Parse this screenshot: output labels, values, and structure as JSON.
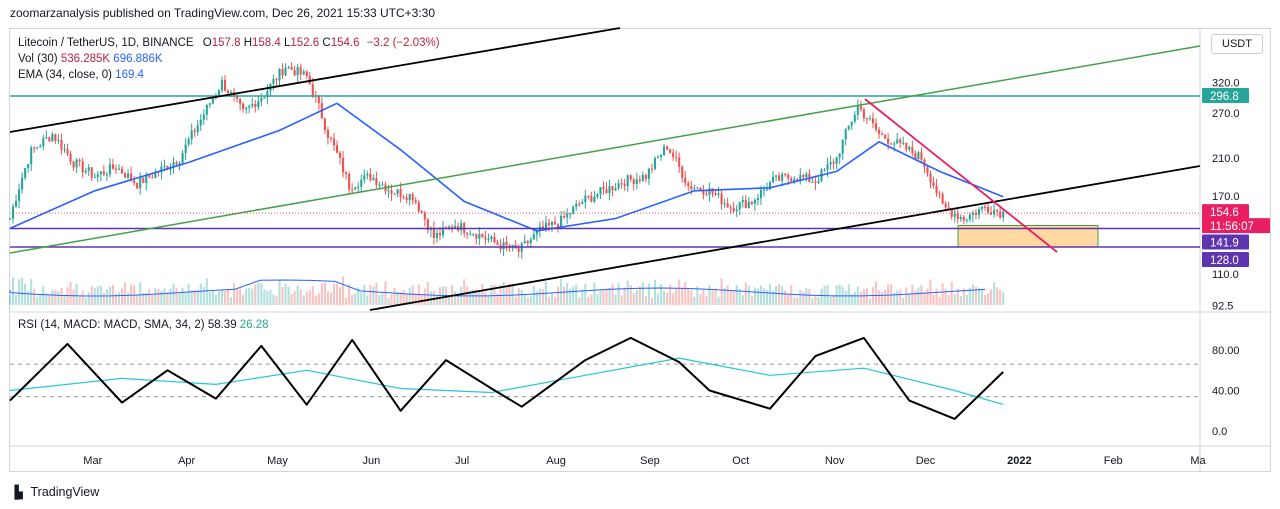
{
  "header": {
    "published": "zoomarzanalysis published on TradingView.com, Dec 26, 2021 15:33 UTC+3:30"
  },
  "legend": {
    "symbol": "Litecoin / TetherUS, 1D, BINANCE",
    "o_label": "O",
    "o": "157.8",
    "h_label": "H",
    "h": "158.4",
    "l_label": "L",
    "l": "152.6",
    "c_label": "C",
    "c": "154.6",
    "chg": "−3.2 (−2.03%)",
    "vol_label": "Vol (30)",
    "vol1": "536.285K",
    "vol2": "696.886K",
    "ema_label": "EMA (34, close, 0)",
    "ema": "169.4",
    "rsi_label": "RSI (14, MACD: MACD, SMA, 34, 2)",
    "rsi1": "58.39",
    "rsi2": "26.28"
  },
  "unit_button": "USDT",
  "price_scale": [
    "320.0",
    "270.0",
    "210.0",
    "170.0",
    "110.0",
    "92.5"
  ],
  "price_scale_top": "4",
  "badges": [
    {
      "id": "resistance",
      "text": "296.8",
      "color": "#26a69a"
    },
    {
      "id": "last",
      "text": "154.6",
      "color": "#e91e63"
    },
    {
      "id": "countdown",
      "text": "11:56:07",
      "color": "#e91e63"
    },
    {
      "id": "s1",
      "text": "141.9",
      "color": "#5e35b1"
    },
    {
      "id": "s2",
      "text": "128.0",
      "color": "#5e35b1"
    }
  ],
  "rsi_scale": [
    "80.00",
    "40.00",
    "0.0"
  ],
  "time_axis": [
    "Mar",
    "Apr",
    "May",
    "Jun",
    "Jul",
    "Aug",
    "Sep",
    "Oct",
    "Nov",
    "Dec",
    "2022",
    "Feb",
    "Ma"
  ],
  "footer": {
    "brand": "TradingView"
  },
  "colors": {
    "up": "#26a69a",
    "down": "#ef5350",
    "ema": "#2962ff",
    "channel": "#000000",
    "green_line": "#43a047",
    "resistance": "#26a69a",
    "downtrend": "#e91e63",
    "support": "#5e35b1",
    "zone": "#ffcc80",
    "rsi": "#000000",
    "rsi_signal": "#26c6da"
  },
  "chart_data": [
    {
      "type": "line",
      "title": "Litecoin / TetherUS, 1D, BINANCE",
      "ylabel": "USDT",
      "x_range": [
        "2021-02-01",
        "2022-03-01"
      ],
      "y_range": [
        90,
        420
      ],
      "y_scale": "log",
      "series": [
        {
          "name": "Close",
          "x": [
            "2021-02-01",
            "2021-02-08",
            "2021-02-15",
            "2021-02-22",
            "2021-03-01",
            "2021-03-08",
            "2021-03-15",
            "2021-03-22",
            "2021-03-29",
            "2021-04-05",
            "2021-04-12",
            "2021-04-19",
            "2021-04-26",
            "2021-05-03",
            "2021-05-10",
            "2021-05-17",
            "2021-05-24",
            "2021-05-31",
            "2021-06-07",
            "2021-06-14",
            "2021-06-21",
            "2021-06-28",
            "2021-07-05",
            "2021-07-12",
            "2021-07-19",
            "2021-07-26",
            "2021-08-02",
            "2021-08-09",
            "2021-08-16",
            "2021-08-23",
            "2021-08-30",
            "2021-09-06",
            "2021-09-13",
            "2021-09-20",
            "2021-09-27",
            "2021-10-04",
            "2021-10-11",
            "2021-10-18",
            "2021-10-25",
            "2021-11-01",
            "2021-11-08",
            "2021-11-15",
            "2021-11-22",
            "2021-11-29",
            "2021-12-06",
            "2021-12-13",
            "2021-12-20",
            "2021-12-26"
          ],
          "values": [
            150,
            218,
            240,
            205,
            190,
            200,
            182,
            195,
            210,
            260,
            320,
            270,
            300,
            350,
            330,
            240,
            180,
            190,
            175,
            170,
            135,
            145,
            138,
            130,
            125,
            140,
            148,
            165,
            175,
            185,
            190,
            225,
            180,
            175,
            160,
            165,
            185,
            190,
            185,
            210,
            280,
            240,
            225,
            210,
            160,
            150,
            160,
            154.6
          ]
        },
        {
          "name": "EMA (34, close, 0)",
          "x": [
            "2021-02-01",
            "2021-03-01",
            "2021-04-01",
            "2021-05-01",
            "2021-05-20",
            "2021-06-10",
            "2021-07-01",
            "2021-07-25",
            "2021-08-20",
            "2021-09-15",
            "2021-10-10",
            "2021-11-01",
            "2021-11-15",
            "2021-12-05",
            "2021-12-26"
          ],
          "values": [
            142,
            175,
            205,
            245,
            285,
            220,
            165,
            140,
            150,
            175,
            178,
            195,
            230,
            195,
            169.4
          ]
        }
      ],
      "annotations": {
        "horizontal_levels": [
          296.8,
          141.9,
          128.0
        ],
        "last_price": 154.6,
        "countdown": "11:56:07",
        "support_zone": [
          128.0,
          141.9
        ]
      }
    },
    {
      "type": "line",
      "title": "RSI (14, MACD: MACD, SMA, 34, 2)",
      "y_range": [
        0,
        100
      ],
      "reference_lines": [
        66,
        34
      ],
      "series": [
        {
          "name": "RSI",
          "x": [
            "2021-02-01",
            "2021-02-20",
            "2021-03-10",
            "2021-03-25",
            "2021-04-10",
            "2021-04-25",
            "2021-05-10",
            "2021-05-25",
            "2021-06-10",
            "2021-06-25",
            "2021-07-10",
            "2021-07-20",
            "2021-08-10",
            "2021-08-25",
            "2021-09-10",
            "2021-09-20",
            "2021-10-10",
            "2021-10-25",
            "2021-11-10",
            "2021-11-25",
            "2021-12-10",
            "2021-12-26"
          ],
          "values": [
            30,
            86,
            28,
            60,
            32,
            84,
            26,
            90,
            20,
            70,
            42,
            24,
            70,
            92,
            68,
            40,
            22,
            74,
            92,
            30,
            12,
            58.39
          ]
        },
        {
          "name": "Signal",
          "x": [
            "2021-02-01",
            "2021-03-10",
            "2021-04-10",
            "2021-05-10",
            "2021-06-10",
            "2021-07-10",
            "2021-08-10",
            "2021-09-10",
            "2021-10-10",
            "2021-11-10",
            "2021-12-10",
            "2021-12-26"
          ],
          "values": [
            40,
            52,
            46,
            60,
            42,
            38,
            55,
            72,
            55,
            62,
            40,
            26.28
          ]
        }
      ]
    }
  ]
}
